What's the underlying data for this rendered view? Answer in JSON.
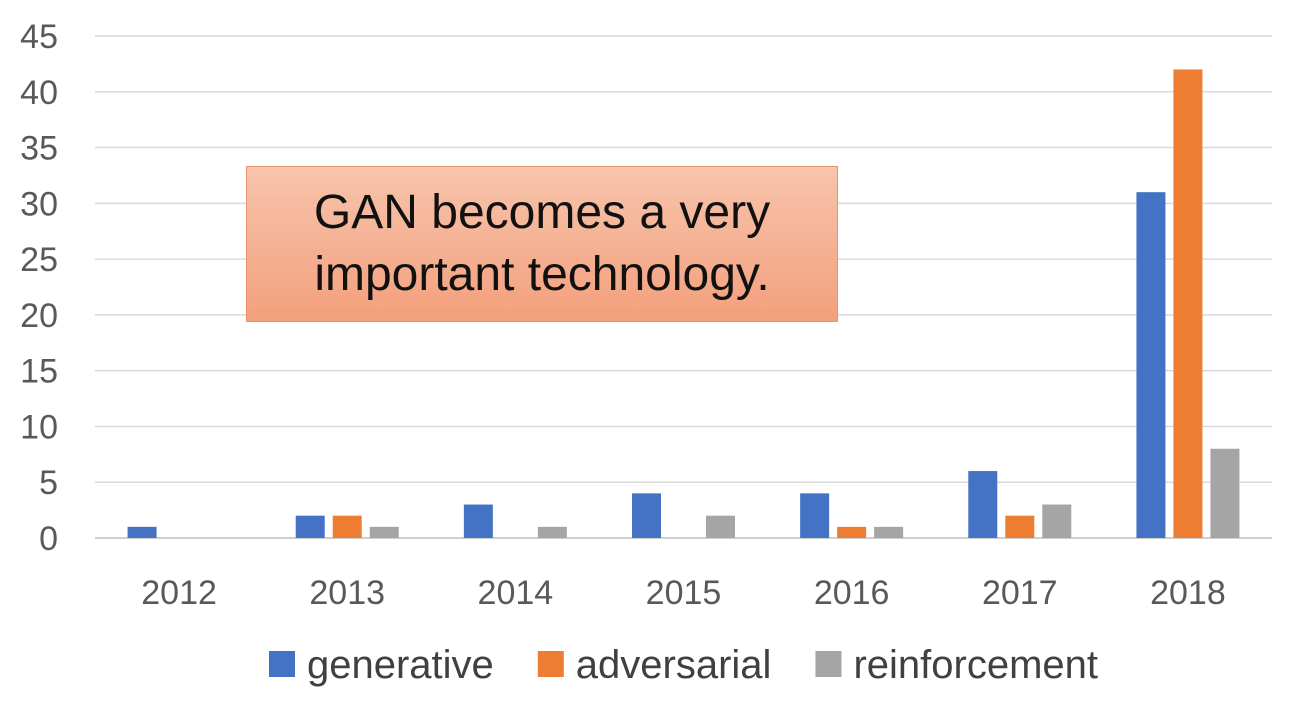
{
  "chart_data": {
    "type": "bar",
    "categories": [
      "2012",
      "2013",
      "2014",
      "2015",
      "2016",
      "2017",
      "2018"
    ],
    "series": [
      {
        "name": "generative",
        "color": "#4472c4",
        "values": [
          1,
          2,
          3,
          4,
          4,
          6,
          31
        ]
      },
      {
        "name": "adversarial",
        "color": "#ed7d31",
        "values": [
          0,
          2,
          0,
          0,
          1,
          2,
          42
        ]
      },
      {
        "name": "reinforcement",
        "color": "#a5a5a5",
        "values": [
          0,
          1,
          1,
          2,
          1,
          3,
          8
        ]
      }
    ],
    "ylim": [
      0,
      45
    ],
    "yticks": [
      0,
      5,
      10,
      15,
      20,
      25,
      30,
      35,
      40,
      45
    ],
    "grid": true,
    "legend": "bottom",
    "annotation": "GAN becomes a very important technology."
  }
}
